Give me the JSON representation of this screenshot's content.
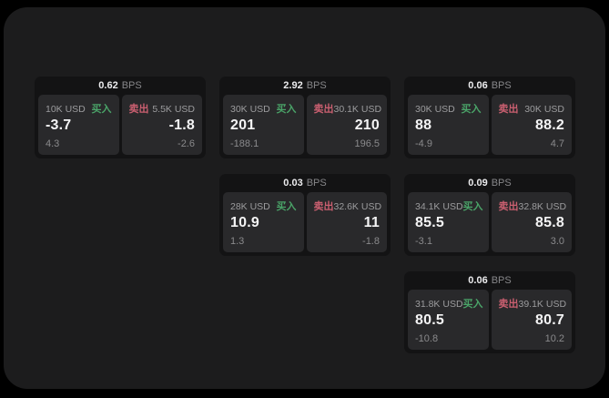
{
  "labels": {
    "buy": "买入",
    "sell": "卖出",
    "bps_unit": "BPS"
  },
  "colors": {
    "buy_accent": "#4aa368",
    "sell_accent": "#ca5f70",
    "panel_bg": "#1c1c1d",
    "card_bg": "#131314",
    "subpanel_bg": "#29292b"
  },
  "cards": [
    {
      "row": 0,
      "col": 0,
      "bps": "0.62",
      "buy": {
        "amount": "10K USD",
        "value": "-3.7",
        "sub": "4.3"
      },
      "sell": {
        "amount": "5.5K USD",
        "value": "-1.8",
        "sub": "-2.6"
      }
    },
    {
      "row": 0,
      "col": 1,
      "bps": "2.92",
      "buy": {
        "amount": "30K USD",
        "value": "201",
        "sub": "-188.1"
      },
      "sell": {
        "amount": "30.1K USD",
        "value": "210",
        "sub": "196.5"
      }
    },
    {
      "row": 0,
      "col": 2,
      "bps": "0.06",
      "buy": {
        "amount": "30K USD",
        "value": "88",
        "sub": "-4.9"
      },
      "sell": {
        "amount": "30K USD",
        "value": "88.2",
        "sub": "4.7"
      }
    },
    {
      "row": 1,
      "col": 1,
      "bps": "0.03",
      "buy": {
        "amount": "28K USD",
        "value": "10.9",
        "sub": "1.3"
      },
      "sell": {
        "amount": "32.6K USD",
        "value": "11",
        "sub": "-1.8"
      }
    },
    {
      "row": 1,
      "col": 2,
      "bps": "0.09",
      "buy": {
        "amount": "34.1K USD",
        "value": "85.5",
        "sub": "-3.1"
      },
      "sell": {
        "amount": "32.8K USD",
        "value": "85.8",
        "sub": "3.0"
      }
    },
    {
      "row": 2,
      "col": 2,
      "bps": "0.06",
      "buy": {
        "amount": "31.8K USD",
        "value": "80.5",
        "sub": "-10.8"
      },
      "sell": {
        "amount": "39.1K USD",
        "value": "80.7",
        "sub": "10.2"
      }
    }
  ]
}
